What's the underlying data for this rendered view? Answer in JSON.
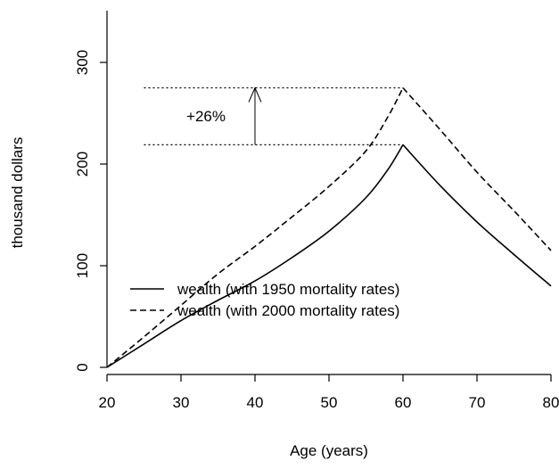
{
  "chart_data": {
    "type": "line",
    "title": "",
    "xlabel": "Age (years)",
    "ylabel": "thousand dollars",
    "xlim": [
      20,
      80
    ],
    "ylim": [
      0,
      350
    ],
    "x_ticks": [
      20,
      30,
      40,
      50,
      60,
      70,
      80
    ],
    "y_ticks": [
      0,
      100,
      200,
      300
    ],
    "grid": false,
    "legend_position": "left-lower",
    "series": [
      {
        "name": "wealth (with 1950 mortality rates)",
        "line_style": "solid",
        "color": "#000000",
        "x": [
          20,
          25,
          30,
          35,
          40,
          45,
          50,
          55,
          58,
          60,
          65,
          70,
          75,
          80
        ],
        "y": [
          0,
          23,
          46,
          66,
          85,
          108,
          134,
          167,
          195,
          219,
          179,
          143,
          111,
          80
        ]
      },
      {
        "name": "wealth (with 2000 mortality rates)",
        "line_style": "dashed",
        "color": "#000000",
        "x": [
          20,
          25,
          30,
          35,
          40,
          45,
          50,
          55,
          58,
          60,
          65,
          70,
          75,
          80
        ],
        "y": [
          0,
          30,
          61,
          92,
          119,
          148,
          178,
          213,
          247,
          275,
          234,
          192,
          154,
          115
        ]
      }
    ],
    "annotations": {
      "label": "+26%",
      "lower_level": 219,
      "upper_level": 275,
      "reference_line_x_start": 25,
      "reference_line_x_end": 60,
      "arrow_x": 40
    }
  }
}
